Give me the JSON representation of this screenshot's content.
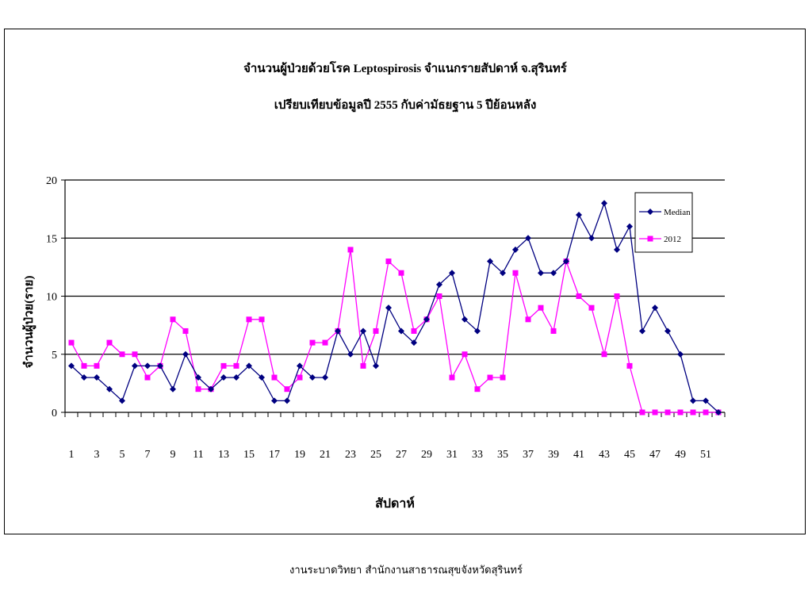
{
  "chart_data": {
    "type": "line",
    "title": "จำนวนผู้ป่วยด้วยโรค Leptospirosis จำแนกรายสัปดาห์  จ.สุรินทร์",
    "subtitle": "เปรียบเทียบข้อมูลปี 2555 กับค่ามัธยฐาน 5 ปีย้อนหลัง",
    "xlabel": "สัปดาห์",
    "ylabel": "จำนวนผู้ป่วย(ราย)",
    "ylim": [
      0,
      20
    ],
    "yticks": [
      "0",
      "5",
      "10",
      "15",
      "20"
    ],
    "x": [
      1,
      2,
      3,
      4,
      5,
      6,
      7,
      8,
      9,
      10,
      11,
      12,
      13,
      14,
      15,
      16,
      17,
      18,
      19,
      20,
      21,
      22,
      23,
      24,
      25,
      26,
      27,
      28,
      29,
      30,
      31,
      32,
      33,
      34,
      35,
      36,
      37,
      38,
      39,
      40,
      41,
      42,
      43,
      44,
      45,
      46,
      47,
      48,
      49,
      50,
      51,
      52
    ],
    "xtick_labels": [
      "1",
      "3",
      "5",
      "7",
      "9",
      "11",
      "13",
      "15",
      "17",
      "19",
      "21",
      "23",
      "25",
      "27",
      "29",
      "31",
      "33",
      "35",
      "37",
      "39",
      "41",
      "43",
      "45",
      "47",
      "49",
      "51"
    ],
    "grid": true,
    "legend_position": "top-right",
    "series": [
      {
        "name": "Median",
        "color": "#000080",
        "marker": "diamond",
        "values": [
          4,
          3,
          3,
          2,
          1,
          4,
          4,
          4,
          2,
          5,
          3,
          2,
          3,
          3,
          4,
          3,
          1,
          1,
          4,
          3,
          3,
          7,
          5,
          7,
          4,
          9,
          7,
          6,
          8,
          11,
          12,
          8,
          7,
          13,
          12,
          14,
          15,
          12,
          12,
          13,
          17,
          15,
          18,
          14,
          16,
          7,
          9,
          7,
          5,
          1,
          1,
          0
        ]
      },
      {
        "name": "2012",
        "color": "#ff00ff",
        "marker": "square",
        "values": [
          6,
          4,
          4,
          6,
          5,
          5,
          3,
          4,
          8,
          7,
          2,
          2,
          4,
          4,
          8,
          8,
          3,
          2,
          3,
          6,
          6,
          7,
          14,
          4,
          7,
          13,
          12,
          7,
          8,
          10,
          3,
          5,
          2,
          3,
          3,
          12,
          8,
          9,
          7,
          13,
          10,
          9,
          5,
          10,
          4,
          0,
          0,
          0,
          0,
          0,
          0,
          0
        ]
      }
    ]
  },
  "footer": "งานระบาดวิทยา สำนักงานสาธารณสุขจังหวัดสุรินทร์"
}
